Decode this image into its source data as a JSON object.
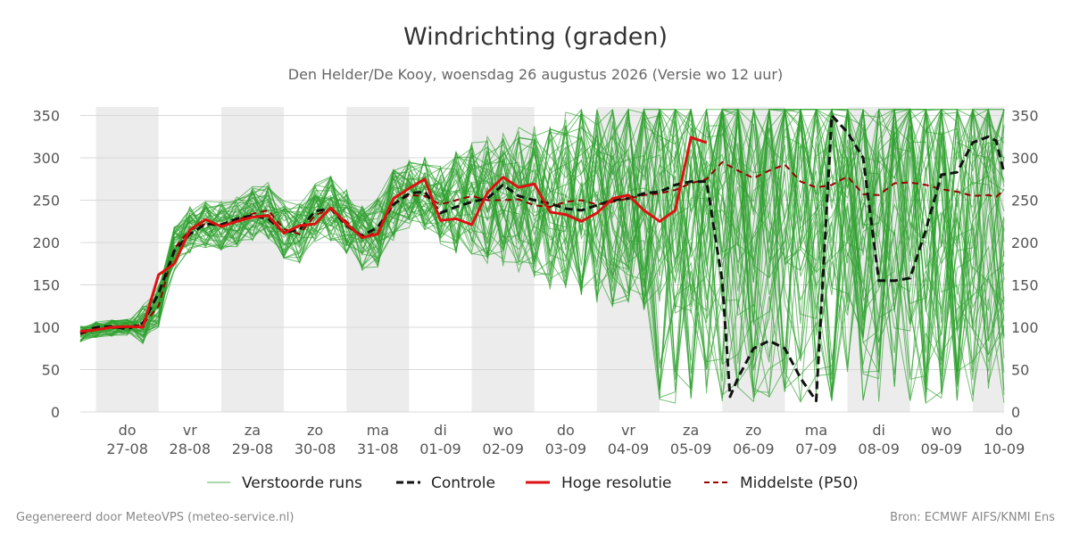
{
  "chart_data": {
    "type": "line",
    "title": "Windrichting (graden)",
    "subtitle": "Den Helder/De Kooy, woensdag 26 augustus 2026 (Versie wo 12 uur)",
    "ylim": [
      0,
      360
    ],
    "yticks": [
      0,
      50,
      100,
      150,
      200,
      250,
      300,
      350
    ],
    "x_start": "2026-08-26 18:00",
    "x_end": "2026-09-10 12:00",
    "x_ticks": [
      {
        "date": "2026-08-27",
        "day": "do",
        "date_label": "27-08"
      },
      {
        "date": "2026-08-28",
        "day": "vr",
        "date_label": "28-08"
      },
      {
        "date": "2026-08-29",
        "day": "za",
        "date_label": "29-08"
      },
      {
        "date": "2026-08-30",
        "day": "zo",
        "date_label": "30-08"
      },
      {
        "date": "2026-08-31",
        "day": "ma",
        "date_label": "31-08"
      },
      {
        "date": "2026-09-01",
        "day": "di",
        "date_label": "01-09"
      },
      {
        "date": "2026-09-02",
        "day": "wo",
        "date_label": "02-09"
      },
      {
        "date": "2026-09-03",
        "day": "do",
        "date_label": "03-09"
      },
      {
        "date": "2026-09-04",
        "day": "vr",
        "date_label": "04-09"
      },
      {
        "date": "2026-09-05",
        "day": "za",
        "date_label": "05-09"
      },
      {
        "date": "2026-09-06",
        "day": "zo",
        "date_label": "06-09"
      },
      {
        "date": "2026-09-07",
        "day": "ma",
        "date_label": "07-09"
      },
      {
        "date": "2026-09-08",
        "day": "di",
        "date_label": "08-09"
      },
      {
        "date": "2026-09-09",
        "day": "wo",
        "date_label": "09-09"
      },
      {
        "date": "2026-09-10",
        "day": "do",
        "date_label": "10-09"
      }
    ],
    "shaded_days": [
      "2026-08-27",
      "2026-08-29",
      "2026-08-31",
      "2026-09-02",
      "2026-09-04",
      "2026-09-06",
      "2026-09-08",
      "2026-09-10"
    ],
    "grid": true,
    "legend_position": "bottom",
    "series": [
      {
        "name": "Hoge resolutie",
        "color": "#dd1111",
        "style": "solid",
        "points": [
          [
            "2026-08-26 18:00",
            95
          ],
          [
            "2026-08-27 00:00",
            97
          ],
          [
            "2026-08-27 06:00",
            100
          ],
          [
            "2026-08-27 12:00",
            101
          ],
          [
            "2026-08-27 18:00",
            100
          ],
          [
            "2026-08-28 00:00",
            162
          ],
          [
            "2026-08-28 06:00",
            175
          ],
          [
            "2026-08-28 12:00",
            215
          ],
          [
            "2026-08-28 18:00",
            227
          ],
          [
            "2026-08-29 00:00",
            219
          ],
          [
            "2026-08-29 06:00",
            225
          ],
          [
            "2026-08-29 12:00",
            230
          ],
          [
            "2026-08-29 18:00",
            232
          ],
          [
            "2026-08-30 00:00",
            211
          ],
          [
            "2026-08-30 06:00",
            220
          ],
          [
            "2026-08-30 12:00",
            222
          ],
          [
            "2026-08-30 18:00",
            241
          ],
          [
            "2026-08-31 00:00",
            222
          ],
          [
            "2026-08-31 06:00",
            206
          ],
          [
            "2026-08-31 12:00",
            210
          ],
          [
            "2026-08-31 18:00",
            252
          ],
          [
            "2026-09-01 00:00",
            264
          ],
          [
            "2026-09-01 06:00",
            275
          ],
          [
            "2026-09-01 12:00",
            226
          ],
          [
            "2026-09-01 18:00",
            228
          ],
          [
            "2026-09-02 00:00",
            221
          ],
          [
            "2026-09-02 06:00",
            259
          ],
          [
            "2026-09-02 12:00",
            277
          ],
          [
            "2026-09-02 18:00",
            265
          ],
          [
            "2026-09-03 00:00",
            269
          ],
          [
            "2026-09-03 06:00",
            236
          ],
          [
            "2026-09-03 12:00",
            233
          ],
          [
            "2026-09-03 18:00",
            225
          ],
          [
            "2026-09-04 00:00",
            235
          ],
          [
            "2026-09-04 06:00",
            252
          ],
          [
            "2026-09-04 12:00",
            256
          ],
          [
            "2026-09-04 18:00",
            238
          ],
          [
            "2026-09-05 00:00",
            225
          ],
          [
            "2026-09-05 06:00",
            238
          ],
          [
            "2026-09-05 12:00",
            324
          ],
          [
            "2026-09-05 18:00",
            318
          ]
        ]
      },
      {
        "name": "Controle",
        "color": "#111111",
        "style": "dashed",
        "points": [
          [
            "2026-08-26 18:00",
            93
          ],
          [
            "2026-08-27 00:00",
            100
          ],
          [
            "2026-08-27 06:00",
            101
          ],
          [
            "2026-08-27 12:00",
            98
          ],
          [
            "2026-08-27 18:00",
            105
          ],
          [
            "2026-08-28 00:00",
            140
          ],
          [
            "2026-08-28 06:00",
            190
          ],
          [
            "2026-08-28 12:00",
            210
          ],
          [
            "2026-08-28 18:00",
            222
          ],
          [
            "2026-08-29 00:00",
            221
          ],
          [
            "2026-08-29 06:00",
            228
          ],
          [
            "2026-08-29 12:00",
            232
          ],
          [
            "2026-08-29 18:00",
            228
          ],
          [
            "2026-08-30 00:00",
            212
          ],
          [
            "2026-08-30 06:00",
            215
          ],
          [
            "2026-08-30 12:00",
            237
          ],
          [
            "2026-08-30 18:00",
            240
          ],
          [
            "2026-08-31 00:00",
            220
          ],
          [
            "2026-08-31 06:00",
            208
          ],
          [
            "2026-08-31 12:00",
            218
          ],
          [
            "2026-08-31 18:00",
            245
          ],
          [
            "2026-09-01 00:00",
            258
          ],
          [
            "2026-09-01 06:00",
            260
          ],
          [
            "2026-09-01 12:00",
            235
          ],
          [
            "2026-09-01 18:00",
            242
          ],
          [
            "2026-09-02 00:00",
            248
          ],
          [
            "2026-09-02 06:00",
            252
          ],
          [
            "2026-09-02 12:00",
            268
          ],
          [
            "2026-09-02 18:00",
            255
          ],
          [
            "2026-09-03 00:00",
            250
          ],
          [
            "2026-09-03 06:00",
            246
          ],
          [
            "2026-09-03 12:00",
            240
          ],
          [
            "2026-09-03 18:00",
            238
          ],
          [
            "2026-09-04 00:00",
            244
          ],
          [
            "2026-09-04 06:00",
            250
          ],
          [
            "2026-09-04 12:00",
            252
          ],
          [
            "2026-09-04 18:00",
            258
          ],
          [
            "2026-09-05 00:00",
            260
          ],
          [
            "2026-09-05 06:00",
            268
          ],
          [
            "2026-09-05 12:00",
            272
          ],
          [
            "2026-09-05 18:00",
            272
          ],
          [
            "2026-09-06 00:00",
            155
          ],
          [
            "2026-09-06 03:00",
            18
          ],
          [
            "2026-09-06 06:00",
            40
          ],
          [
            "2026-09-06 12:00",
            75
          ],
          [
            "2026-09-06 18:00",
            84
          ],
          [
            "2026-09-07 00:00",
            75
          ],
          [
            "2026-09-07 06:00",
            40
          ],
          [
            "2026-09-07 12:00",
            13
          ],
          [
            "2026-09-07 18:00",
            350
          ],
          [
            "2026-09-08 00:00",
            330
          ],
          [
            "2026-09-08 06:00",
            300
          ],
          [
            "2026-09-08 12:00",
            155
          ],
          [
            "2026-09-08 18:00",
            155
          ],
          [
            "2026-09-09 00:00",
            158
          ],
          [
            "2026-09-09 06:00",
            215
          ],
          [
            "2026-09-09 12:00",
            280
          ],
          [
            "2026-09-09 18:00",
            283
          ],
          [
            "2026-09-10 00:00",
            318
          ],
          [
            "2026-09-10 06:00",
            325
          ],
          [
            "2026-09-10 09:00",
            320
          ],
          [
            "2026-09-10 12:00",
            282
          ]
        ]
      },
      {
        "name": "Middelste (P50)",
        "color": "#990000",
        "style": "dashed",
        "points": [
          [
            "2026-08-26 18:00",
            92
          ],
          [
            "2026-08-27 00:00",
            97
          ],
          [
            "2026-08-27 06:00",
            99
          ],
          [
            "2026-08-27 12:00",
            100
          ],
          [
            "2026-08-27 18:00",
            103
          ],
          [
            "2026-08-28 00:00",
            125
          ],
          [
            "2026-08-28 06:00",
            193
          ],
          [
            "2026-08-28 12:00",
            215
          ],
          [
            "2026-08-28 18:00",
            222
          ],
          [
            "2026-08-29 00:00",
            220
          ],
          [
            "2026-08-29 06:00",
            226
          ],
          [
            "2026-08-29 12:00",
            234
          ],
          [
            "2026-08-29 18:00",
            238
          ],
          [
            "2026-08-30 00:00",
            216
          ],
          [
            "2026-08-30 06:00",
            210
          ],
          [
            "2026-08-30 12:00",
            232
          ],
          [
            "2026-08-30 18:00",
            240
          ],
          [
            "2026-08-31 00:00",
            225
          ],
          [
            "2026-08-31 06:00",
            205
          ],
          [
            "2026-08-31 12:00",
            213
          ],
          [
            "2026-08-31 18:00",
            245
          ],
          [
            "2026-09-01 00:00",
            256
          ],
          [
            "2026-09-01 06:00",
            255
          ],
          [
            "2026-09-01 12:00",
            245
          ],
          [
            "2026-09-01 18:00",
            250
          ],
          [
            "2026-09-02 00:00",
            255
          ],
          [
            "2026-09-02 06:00",
            250
          ],
          [
            "2026-09-02 12:00",
            250
          ],
          [
            "2026-09-02 18:00",
            251
          ],
          [
            "2026-09-03 00:00",
            244
          ],
          [
            "2026-09-03 06:00",
            242
          ],
          [
            "2026-09-03 12:00",
            248
          ],
          [
            "2026-09-03 18:00",
            250
          ],
          [
            "2026-09-04 00:00",
            245
          ],
          [
            "2026-09-04 06:00",
            248
          ],
          [
            "2026-09-04 12:00",
            252
          ],
          [
            "2026-09-04 18:00",
            256
          ],
          [
            "2026-09-05 00:00",
            258
          ],
          [
            "2026-09-05 06:00",
            262
          ],
          [
            "2026-09-05 12:00",
            270
          ],
          [
            "2026-09-05 18:00",
            275
          ],
          [
            "2026-09-06 00:00",
            295
          ],
          [
            "2026-09-06 06:00",
            285
          ],
          [
            "2026-09-06 12:00",
            276
          ],
          [
            "2026-09-06 18:00",
            285
          ],
          [
            "2026-09-07 00:00",
            292
          ],
          [
            "2026-09-07 06:00",
            272
          ],
          [
            "2026-09-07 12:00",
            265
          ],
          [
            "2026-09-07 18:00",
            268
          ],
          [
            "2026-09-08 00:00",
            278
          ],
          [
            "2026-09-08 06:00",
            257
          ],
          [
            "2026-09-08 12:00",
            256
          ],
          [
            "2026-09-08 18:00",
            270
          ],
          [
            "2026-09-09 00:00",
            271
          ],
          [
            "2026-09-09 06:00",
            268
          ],
          [
            "2026-09-09 12:00",
            263
          ],
          [
            "2026-09-09 18:00",
            260
          ],
          [
            "2026-09-10 00:00",
            255
          ],
          [
            "2026-09-10 06:00",
            256
          ],
          [
            "2026-09-10 09:00",
            254
          ],
          [
            "2026-09-10 12:00",
            262
          ]
        ]
      }
    ],
    "ensemble": {
      "name": "Verstoorde runs",
      "color": "#2ca02c",
      "member_count": 50,
      "note_values": "Individual perturbed members are not readable from the image; drawn as a randomized spread around the median."
    }
  },
  "legend": {
    "items": [
      {
        "label": "Verstoorde runs",
        "color": "#2ca02c",
        "style": "thin"
      },
      {
        "label": "Controle",
        "color": "#111111",
        "style": "dashed"
      },
      {
        "label": "Hoge resolutie",
        "color": "#dd1111",
        "style": "solid"
      },
      {
        "label": "Middelste (P50)",
        "color": "#990000",
        "style": "dashed"
      }
    ]
  },
  "footer": {
    "left": "Gegenereerd door MeteoVPS (meteo-service.nl)",
    "right": "Bron: ECMWF AIFS/KNMI Ens"
  }
}
